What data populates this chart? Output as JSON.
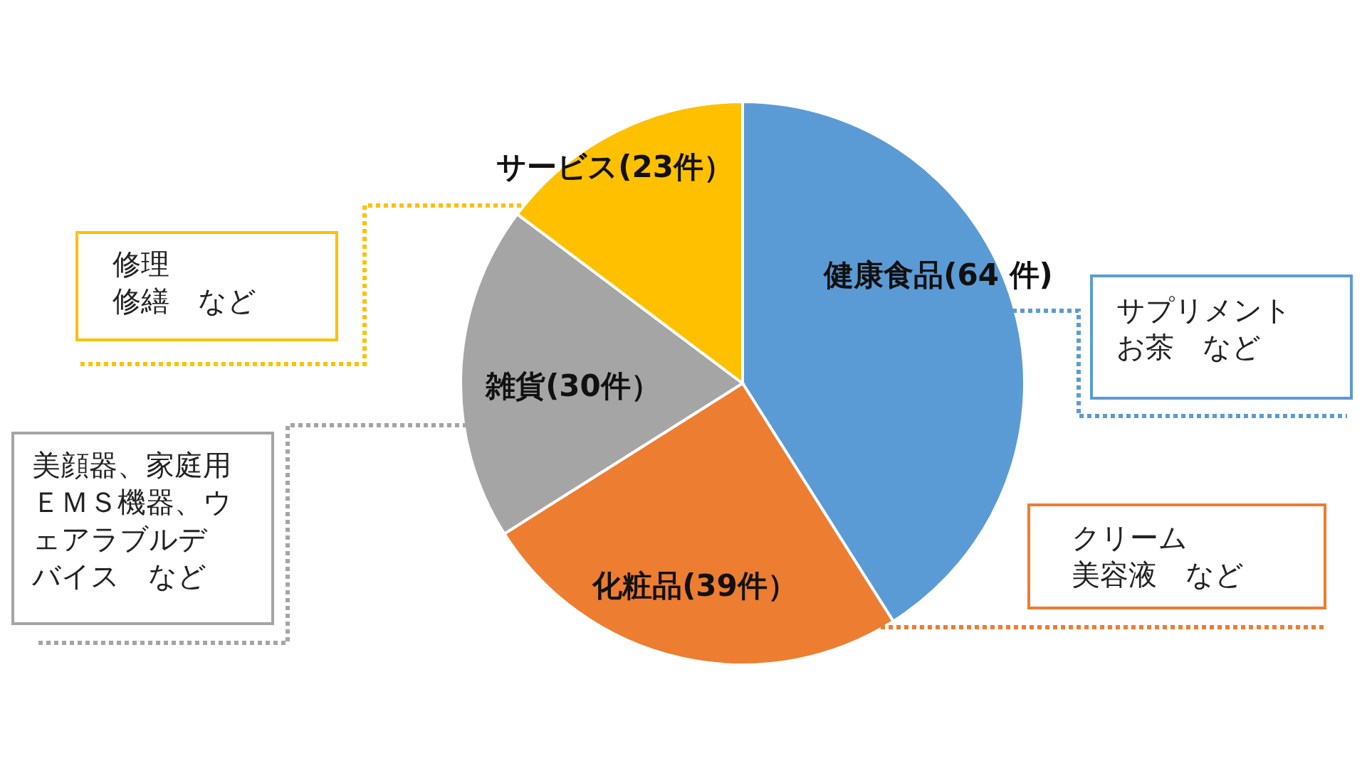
{
  "chart_data": {
    "type": "pie",
    "categories": [
      "健康食品(64 件)",
      "化粧品(39件）",
      "雑貨(30件）",
      "サービス(23件）"
    ],
    "values": [
      64,
      39,
      30,
      23
    ],
    "colors": [
      "#5b9bd5",
      "#ed7d31",
      "#a5a5a5",
      "#ffc000"
    ],
    "annotations": [
      "サプリメントお茶　など",
      "クリーム美容液　など",
      "美顔器、家庭用ＥＭＳ機器、ウェアラブルデバイス　など",
      "修理修繕　など"
    ]
  }
}
